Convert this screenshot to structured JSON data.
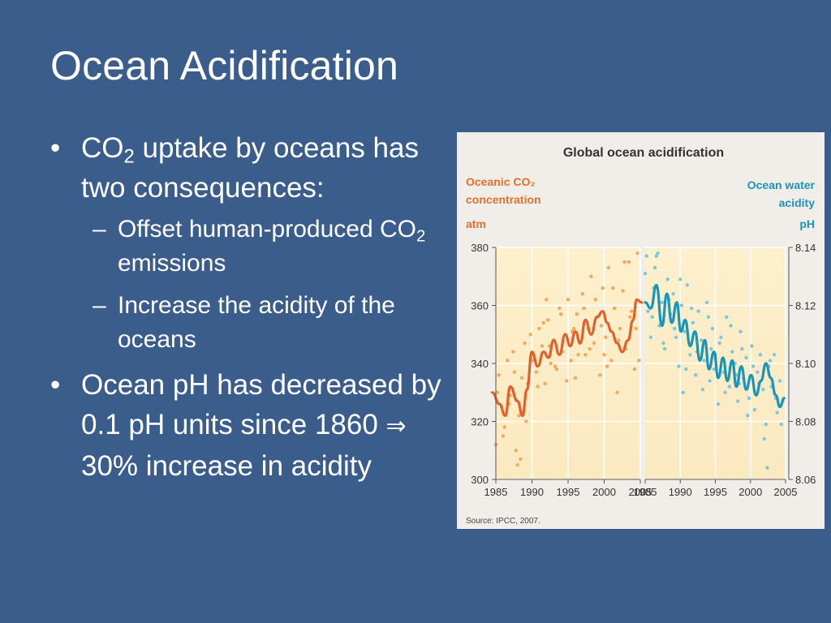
{
  "slide": {
    "title": "Ocean Acidification",
    "bullets": [
      {
        "pre": "CO",
        "sub": "2",
        "post": " uptake by oceans has two consequences:",
        "subitems": [
          {
            "pre": "Offset human-produced CO",
            "sub": "2",
            "post": " emissions"
          },
          {
            "pre": "Increase the acidity of the oceans",
            "sub": "",
            "post": ""
          }
        ]
      },
      {
        "pre": "Ocean pH has decreased by 0.1 pH units since 1860 ",
        "symbol": "⇒",
        "post": " 30% increase in acidity"
      }
    ],
    "bullet_glyph": "•",
    "dash_glyph": "–"
  },
  "figure": {
    "title": "Global ocean acidification",
    "left_label_1": "Oceanic CO₂",
    "left_label_2": "concentration",
    "left_unit": "atm",
    "right_label_1": "Ocean water",
    "right_label_2": "acidity",
    "right_unit": "pH",
    "source": "Source: IPCC, 2007.",
    "colors": {
      "co2": "#e2602c",
      "co2_dots": "#f2a95e",
      "ph": "#1a95b8",
      "ph_dots": "#7fc6dc",
      "panel_bg": "#fbecc8",
      "left_label": "#e2702c",
      "right_label": "#1a95b8"
    }
  },
  "chart_data": {
    "type": "line",
    "title": "Global ocean acidification",
    "panels": [
      {
        "name": "Oceanic CO2 concentration",
        "ylabel": "atm",
        "ylim": [
          300,
          380
        ],
        "yticks": [
          300,
          320,
          340,
          360,
          380
        ],
        "xlim": [
          1985,
          2005
        ],
        "xticks": [
          1985,
          1990,
          1995,
          2000,
          2005
        ],
        "smoothed": {
          "x": [
            1984.5,
            1985.5,
            1986.3,
            1987,
            1988,
            1988.7,
            1989.3,
            1990,
            1990.8,
            1991.6,
            1992.3,
            1993,
            1993.8,
            1994.6,
            1995.3,
            1996,
            1996.7,
            1997.4,
            1998.2,
            1999,
            1999.8,
            2000.4,
            2001,
            2001.8,
            2002.5,
            2003.3,
            2004,
            2004.5,
            2005.2
          ],
          "y": [
            330,
            326,
            322,
            332,
            327,
            322,
            331,
            344,
            339,
            344,
            342,
            348,
            343,
            350,
            346,
            351,
            347,
            355,
            350,
            356,
            358,
            354,
            351,
            347,
            344,
            348,
            355,
            362,
            361
          ]
        },
        "points": {
          "x": [
            1985.0,
            1985.4,
            1985.8,
            1986.2,
            1986.6,
            1987.0,
            1987.4,
            1987.8,
            1988.2,
            1988.6,
            1989.0,
            1989.4,
            1989.8,
            1990.2,
            1990.6,
            1991.0,
            1991.4,
            1991.8,
            1992.2,
            1992.6,
            1993.0,
            1993.4,
            1993.8,
            1994.2,
            1994.6,
            1995.0,
            1995.4,
            1995.8,
            1996.2,
            1996.6,
            1997.0,
            1997.4,
            1997.8,
            1998.2,
            1998.6,
            1999.0,
            1999.4,
            1999.8,
            2000.2,
            2000.6,
            2001.0,
            2001.4,
            2001.8,
            2002.2,
            2002.6,
            2003.0,
            2003.4,
            2003.8,
            2004.2,
            2004.6,
            1985.2,
            1986.0,
            1986.8,
            1987.6,
            1988.4,
            1989.2,
            1990.0,
            1990.8,
            1991.6,
            1992.4,
            1993.2,
            1994.0,
            1994.8,
            1995.6,
            1996.4,
            1997.2,
            1998.0,
            1998.8,
            1999.6,
            2000.4,
            2001.2,
            2002.0,
            2002.8,
            2003.6,
            2004.4,
            1988.0,
            1992.0,
            1996.0,
            2000.0,
            2004.8
          ],
          "y": [
            312,
            336,
            325,
            318,
            341,
            329,
            344,
            310,
            322,
            335,
            347,
            333,
            350,
            341,
            337,
            352,
            346,
            333,
            355,
            340,
            348,
            338,
            359,
            344,
            350,
            362,
            341,
            352,
            357,
            347,
            364,
            343,
            352,
            370,
            347,
            356,
            336,
            366,
            349,
            373,
            341,
            359,
            330,
            352,
            365,
            345,
            375,
            358,
            338,
            378,
            330,
            315,
            326,
            337,
            307,
            320,
            343,
            332,
            354,
            346,
            339,
            357,
            334,
            351,
            343,
            359,
            345,
            362,
            353,
            339,
            366,
            348,
            375,
            356,
            352,
            305,
            362,
            335,
            343,
            341
          ]
        }
      },
      {
        "name": "Ocean water acidity",
        "ylabel": "pH",
        "ylim": [
          8.06,
          8.14
        ],
        "yticks": [
          8.06,
          8.08,
          8.1,
          8.12,
          8.14
        ],
        "xlim": [
          1985,
          2005
        ],
        "xticks": [
          1985,
          1990,
          1995,
          2000,
          2005
        ],
        "smoothed": {
          "x": [
            1985,
            1985.8,
            1986.6,
            1987.4,
            1988.1,
            1988.8,
            1989.5,
            1990.1,
            1990.7,
            1991.4,
            1992.1,
            1992.8,
            1993.5,
            1994.1,
            1994.8,
            1995.4,
            1996.1,
            1996.7,
            1997.4,
            1998,
            1998.7,
            1999.4,
            2000.1,
            2000.8,
            2001.5,
            2002.2,
            2002.9,
            2003.6,
            2004.2,
            2004.8
          ],
          "y": [
            8.121,
            8.119,
            8.127,
            8.113,
            8.124,
            8.114,
            8.121,
            8.111,
            8.115,
            8.106,
            8.111,
            8.101,
            8.108,
            8.098,
            8.104,
            8.095,
            8.102,
            8.094,
            8.101,
            8.092,
            8.099,
            8.091,
            8.096,
            8.089,
            8.094,
            8.1,
            8.095,
            8.089,
            8.085,
            8.088
          ]
        },
        "points": {
          "x": [
            1985.0,
            1985.4,
            1985.8,
            1986.2,
            1986.6,
            1987.0,
            1987.4,
            1987.8,
            1988.2,
            1988.6,
            1989.0,
            1989.4,
            1989.8,
            1990.2,
            1990.6,
            1991.0,
            1991.4,
            1991.8,
            1992.2,
            1992.6,
            1993.0,
            1993.4,
            1993.8,
            1994.2,
            1994.6,
            1995.0,
            1995.4,
            1995.8,
            1996.2,
            1996.6,
            1997.0,
            1997.4,
            1997.8,
            1998.2,
            1998.6,
            1999.0,
            1999.4,
            1999.8,
            2000.2,
            2000.6,
            2001.0,
            2001.4,
            2001.8,
            2002.2,
            2002.6,
            2003.0,
            2003.4,
            2003.8,
            2004.2,
            2004.6,
            1985.2,
            1986.0,
            1986.8,
            1987.6,
            1988.4,
            1989.2,
            1990.0,
            1990.8,
            1991.6,
            1992.4,
            1993.2,
            1994.0,
            1994.8,
            1995.6,
            1996.4,
            1997.2,
            1998.0,
            1998.8,
            1999.6,
            2000.4,
            2001.2,
            2002.0,
            2002.8,
            2003.6,
            2004.4,
            1986.4,
            1990.4,
            1994.4,
            1998.4,
            2002.4
          ],
          "y": [
            8.131,
            8.118,
            8.109,
            8.126,
            8.137,
            8.113,
            8.121,
            8.105,
            8.129,
            8.117,
            8.124,
            8.109,
            8.099,
            8.12,
            8.111,
            8.127,
            8.103,
            8.114,
            8.096,
            8.118,
            8.108,
            8.101,
            8.121,
            8.094,
            8.112,
            8.103,
            8.086,
            8.109,
            8.097,
            8.116,
            8.092,
            8.104,
            8.1,
            8.087,
            8.111,
            8.095,
            8.102,
            8.088,
            8.106,
            8.084,
            8.097,
            8.103,
            8.091,
            8.079,
            8.099,
            8.092,
            8.103,
            8.083,
            8.094,
            8.087,
            8.137,
            8.116,
            8.138,
            8.107,
            8.122,
            8.112,
            8.129,
            8.098,
            8.119,
            8.104,
            8.091,
            8.116,
            8.098,
            8.107,
            8.09,
            8.113,
            8.096,
            8.105,
            8.082,
            8.099,
            8.093,
            8.074,
            8.101,
            8.088,
            8.079,
            8.133,
            8.09,
            8.105,
            8.093,
            8.064
          ]
        }
      }
    ],
    "grid": true,
    "source": "Source: IPCC, 2007."
  }
}
